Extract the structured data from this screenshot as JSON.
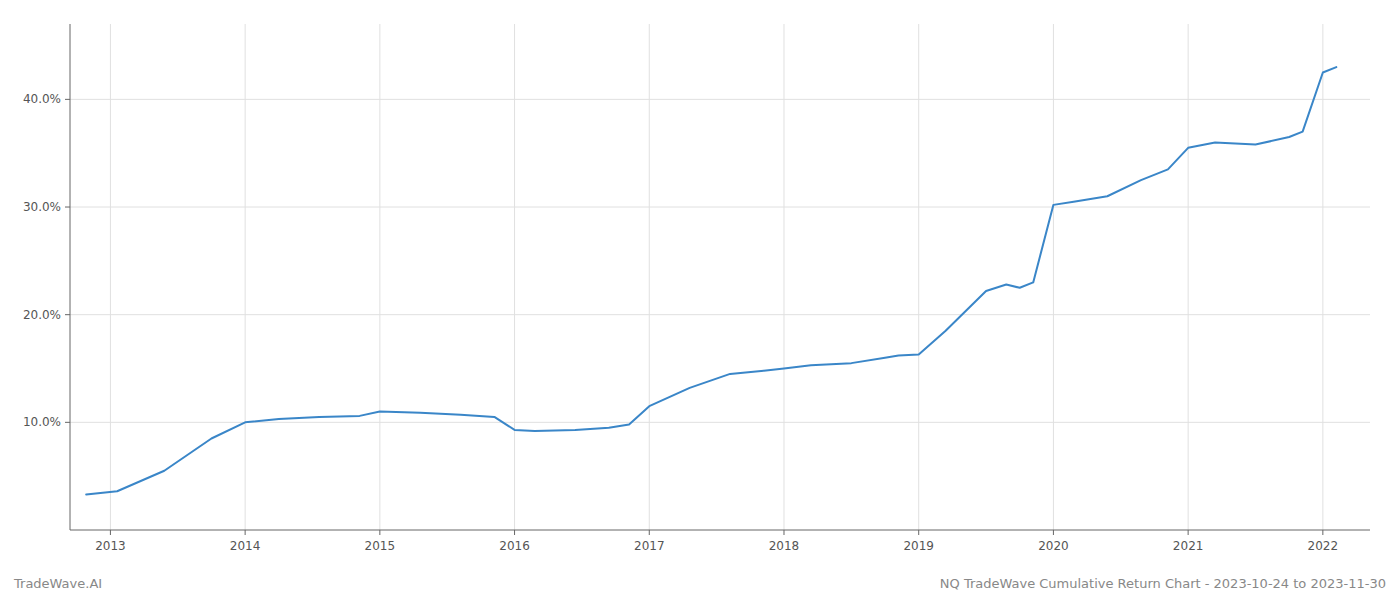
{
  "chart_data": {
    "type": "line",
    "x": [
      2012.82,
      2013.05,
      2013.4,
      2013.75,
      2014.0,
      2014.25,
      2014.55,
      2014.85,
      2015.0,
      2015.3,
      2015.6,
      2015.85,
      2016.0,
      2016.15,
      2016.45,
      2016.7,
      2016.85,
      2017.0,
      2017.3,
      2017.6,
      2017.85,
      2018.0,
      2018.2,
      2018.5,
      2018.75,
      2018.85,
      2019.0,
      2019.2,
      2019.5,
      2019.65,
      2019.75,
      2019.85,
      2020.0,
      2020.15,
      2020.4,
      2020.65,
      2020.85,
      2021.0,
      2021.2,
      2021.5,
      2021.75,
      2021.85,
      2022.0,
      2022.1
    ],
    "values": [
      3.3,
      3.6,
      5.5,
      8.5,
      10.0,
      10.3,
      10.5,
      10.6,
      11.0,
      10.9,
      10.7,
      10.5,
      9.3,
      9.2,
      9.3,
      9.5,
      9.8,
      11.5,
      13.2,
      14.5,
      14.8,
      15.0,
      15.3,
      15.5,
      16.0,
      16.2,
      16.3,
      18.5,
      22.2,
      22.8,
      22.5,
      23.0,
      30.2,
      30.5,
      31.0,
      32.5,
      33.5,
      35.5,
      36.0,
      35.8,
      36.5,
      37.0,
      42.5,
      43.0
    ],
    "color": "#3a86c8",
    "xlim": [
      2012.7,
      2022.35
    ],
    "ylim": [
      0,
      47
    ],
    "xticks": [
      2013,
      2014,
      2015,
      2016,
      2017,
      2018,
      2019,
      2020,
      2021,
      2022
    ],
    "yticks": [
      {
        "value": 10.0,
        "label": "10.0%"
      },
      {
        "value": 20.0,
        "label": "20.0%"
      },
      {
        "value": 30.0,
        "label": "30.0%"
      },
      {
        "value": 40.0,
        "label": "40.0%"
      }
    ],
    "grid": true,
    "annotations": [
      "TradeWave.AI",
      "NQ TradeWave Cumulative Return Chart - 2023-10-24 to 2023-11-30"
    ]
  }
}
